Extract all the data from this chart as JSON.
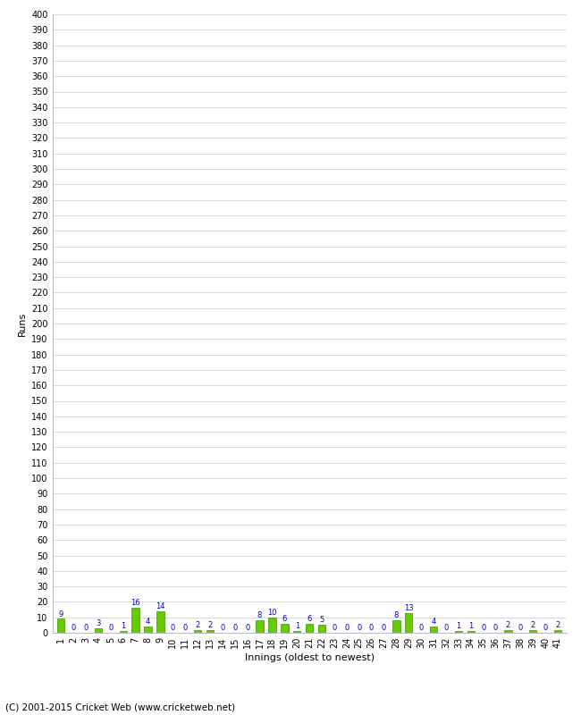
{
  "xlabel": "Innings (oldest to newest)",
  "ylabel": "Runs",
  "values": [
    9,
    0,
    0,
    3,
    0,
    1,
    16,
    4,
    14,
    0,
    0,
    2,
    2,
    0,
    0,
    0,
    8,
    10,
    6,
    1,
    6,
    5,
    0,
    0,
    0,
    0,
    0,
    8,
    13,
    0,
    4,
    0,
    1,
    1,
    0,
    0,
    2,
    0,
    2,
    0,
    2
  ],
  "bar_color": "#66cc00",
  "bar_edge_color": "#339900",
  "label_color": "#0000cc",
  "background_color": "#ffffff",
  "grid_color": "#cccccc",
  "ylim": [
    0,
    400
  ],
  "ytick_step": 10,
  "footer": "(C) 2001-2015 Cricket Web (www.cricketweb.net)"
}
